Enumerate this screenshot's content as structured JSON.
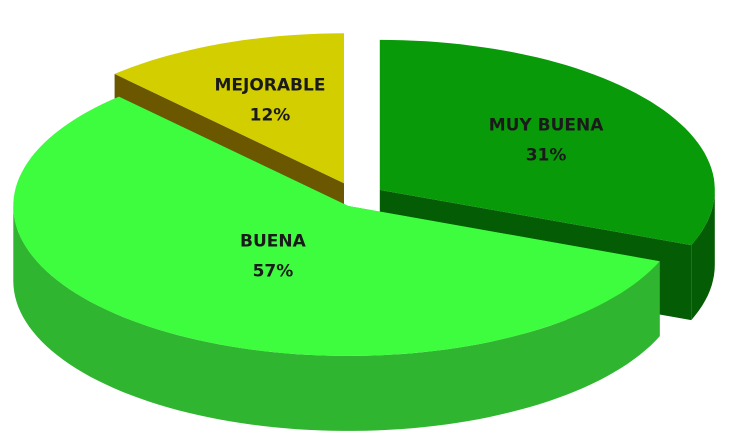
{
  "chart_data": {
    "type": "pie3d",
    "categories": [
      "MUY BUENA",
      "BUENA",
      "MEJORABLE"
    ],
    "values": [
      31,
      57,
      12
    ],
    "value_labels": [
      "31%",
      "57%",
      "12%"
    ],
    "colors": [
      "#089a08",
      "#3efc3e",
      "#d2ce00"
    ],
    "side_colors": [
      "#045c04",
      "#2fb52f",
      "#6a5700"
    ]
  }
}
